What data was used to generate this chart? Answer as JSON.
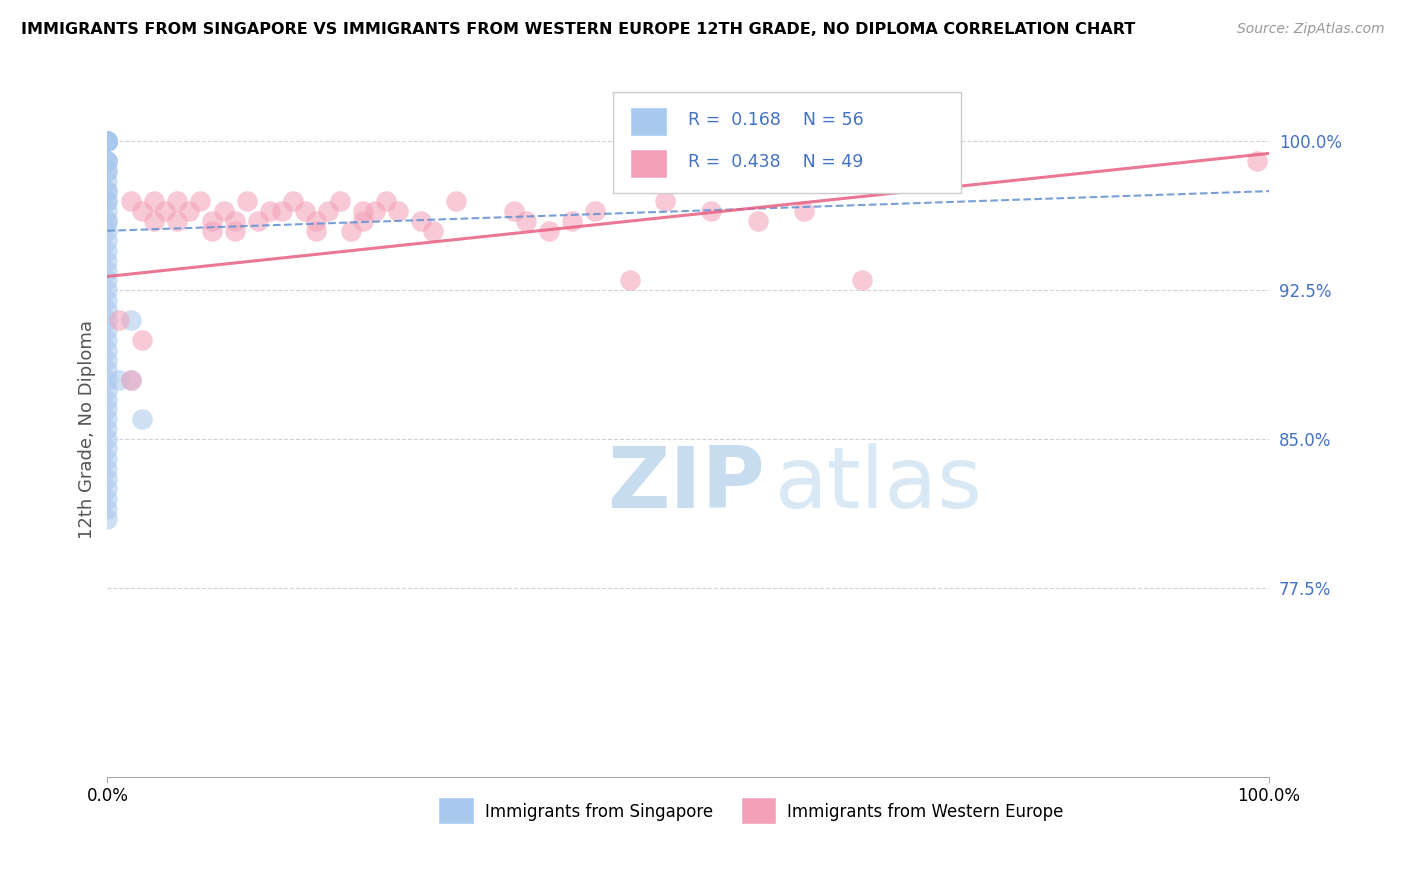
{
  "title": "IMMIGRANTS FROM SINGAPORE VS IMMIGRANTS FROM WESTERN EUROPE 12TH GRADE, NO DIPLOMA CORRELATION CHART",
  "source": "Source: ZipAtlas.com",
  "ylabel": "12th Grade, No Diploma",
  "ytick_labels": [
    "100.0%",
    "92.5%",
    "85.0%",
    "77.5%"
  ],
  "ytick_values": [
    1.0,
    0.925,
    0.85,
    0.775
  ],
  "xlim": [
    0.0,
    1.0
  ],
  "ylim": [
    0.68,
    1.03
  ],
  "legend_entry1": "Immigrants from Singapore",
  "legend_entry2": "Immigrants from Western Europe",
  "R1": "0.168",
  "N1": 56,
  "R2": "0.438",
  "N2": 49,
  "color_blue": "#A8C8EE",
  "color_pink": "#F4A0B8",
  "color_blue_line": "#6090D0",
  "color_pink_line": "#E86080",
  "color_blue_text": "#4472C4",
  "watermark_zip": "ZIP",
  "watermark_atlas": "atlas",
  "sg_x": [
    0.0,
    0.0,
    0.0,
    0.0,
    0.0,
    0.0,
    0.0,
    0.0,
    0.0,
    0.0,
    0.0,
    0.0,
    0.0,
    0.0,
    0.0,
    0.0,
    0.0,
    0.0,
    0.0,
    0.0,
    0.0,
    0.0,
    0.0,
    0.0,
    0.0,
    0.0,
    0.0,
    0.0,
    0.0,
    0.0,
    0.0,
    0.0,
    0.0,
    0.0,
    0.0,
    0.0,
    0.0,
    0.0,
    0.0,
    0.0,
    0.0,
    0.0,
    0.0,
    0.0,
    0.0,
    0.0,
    0.0,
    0.0,
    0.0,
    0.0,
    0.0,
    0.0,
    0.01,
    0.02,
    0.02,
    0.03
  ],
  "sg_y": [
    1.0,
    1.0,
    1.0,
    1.0,
    1.0,
    1.0,
    1.0,
    1.0,
    1.0,
    0.99,
    0.99,
    0.99,
    0.985,
    0.985,
    0.98,
    0.975,
    0.975,
    0.97,
    0.97,
    0.965,
    0.96,
    0.96,
    0.955,
    0.95,
    0.945,
    0.94,
    0.935,
    0.93,
    0.925,
    0.92,
    0.915,
    0.91,
    0.905,
    0.9,
    0.895,
    0.89,
    0.885,
    0.88,
    0.875,
    0.87,
    0.865,
    0.86,
    0.855,
    0.85,
    0.845,
    0.84,
    0.835,
    0.83,
    0.825,
    0.82,
    0.815,
    0.81,
    0.88,
    0.91,
    0.88,
    0.86
  ],
  "we_x": [
    0.02,
    0.03,
    0.04,
    0.04,
    0.05,
    0.06,
    0.06,
    0.07,
    0.08,
    0.09,
    0.09,
    0.1,
    0.11,
    0.11,
    0.12,
    0.13,
    0.14,
    0.15,
    0.16,
    0.17,
    0.18,
    0.18,
    0.19,
    0.2,
    0.21,
    0.22,
    0.22,
    0.23,
    0.24,
    0.25,
    0.27,
    0.28,
    0.3,
    0.35,
    0.36,
    0.38,
    0.4,
    0.42,
    0.45,
    0.48,
    0.52,
    0.56,
    0.6,
    0.65,
    0.7,
    0.99,
    0.01,
    0.02,
    0.03
  ],
  "we_y": [
    0.97,
    0.965,
    0.97,
    0.96,
    0.965,
    0.97,
    0.96,
    0.965,
    0.97,
    0.96,
    0.955,
    0.965,
    0.96,
    0.955,
    0.97,
    0.96,
    0.965,
    0.965,
    0.97,
    0.965,
    0.96,
    0.955,
    0.965,
    0.97,
    0.955,
    0.965,
    0.96,
    0.965,
    0.97,
    0.965,
    0.96,
    0.955,
    0.97,
    0.965,
    0.96,
    0.955,
    0.96,
    0.965,
    0.93,
    0.97,
    0.965,
    0.96,
    0.965,
    0.93,
    0.98,
    0.99,
    0.91,
    0.88,
    0.9
  ]
}
